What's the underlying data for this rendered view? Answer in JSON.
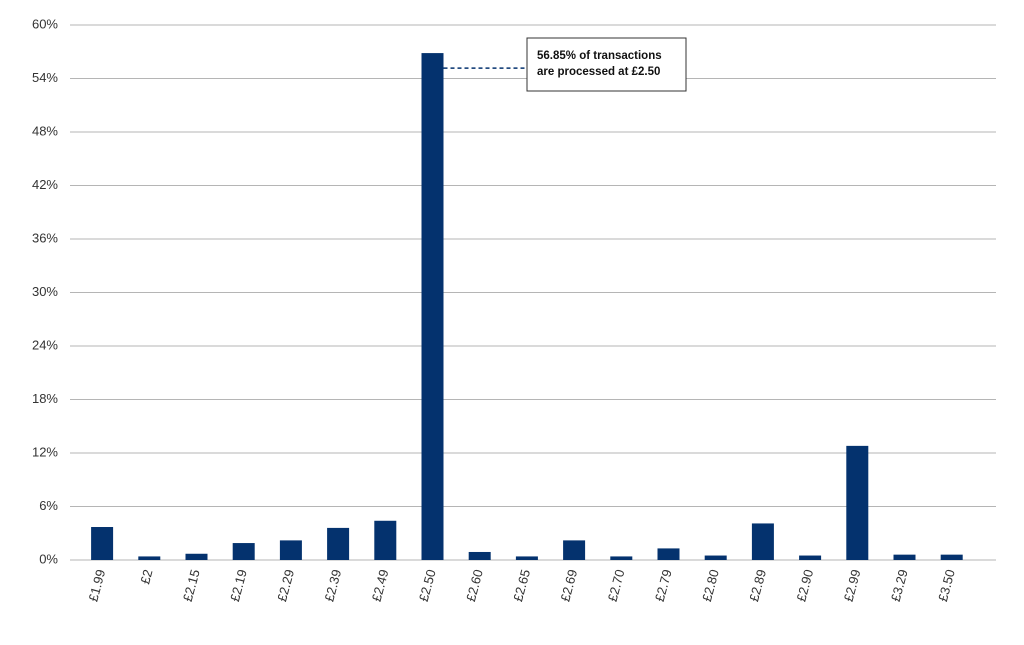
{
  "chart_data": {
    "type": "bar",
    "categories": [
      "£1.99",
      "£2",
      "£2.15",
      "£2.19",
      "£2.29",
      "£2.39",
      "£2.49",
      "£2.50",
      "£2.60",
      "£2.65",
      "£2.69",
      "£2.70",
      "£2.79",
      "£2.80",
      "£2.89",
      "£2.90",
      "£2.99",
      "£3.29",
      "£3.50"
    ],
    "values": [
      3.7,
      0.4,
      0.7,
      1.9,
      2.2,
      3.6,
      4.4,
      56.85,
      0.9,
      0.4,
      2.2,
      0.4,
      1.3,
      0.5,
      4.1,
      0.5,
      12.8,
      0.6,
      0.6
    ],
    "color": "#04326e",
    "ylim": [
      0,
      60
    ],
    "yticks": [
      {
        "value": 0,
        "label": "0%"
      },
      {
        "value": 6,
        "label": "6%"
      },
      {
        "value": 12,
        "label": "12%"
      },
      {
        "value": 18,
        "label": "18%"
      },
      {
        "value": 24,
        "label": "24%"
      },
      {
        "value": 30,
        "label": "30%"
      },
      {
        "value": 36,
        "label": "36%"
      },
      {
        "value": 42,
        "label": "42%"
      },
      {
        "value": 48,
        "label": "48%"
      },
      {
        "value": 54,
        "label": "54%"
      },
      {
        "value": 60,
        "label": "60%"
      }
    ],
    "grid": true,
    "annotation": {
      "category_index": 7,
      "lines": [
        "56.85% of transactions",
        "are processed at £2.50"
      ]
    }
  }
}
